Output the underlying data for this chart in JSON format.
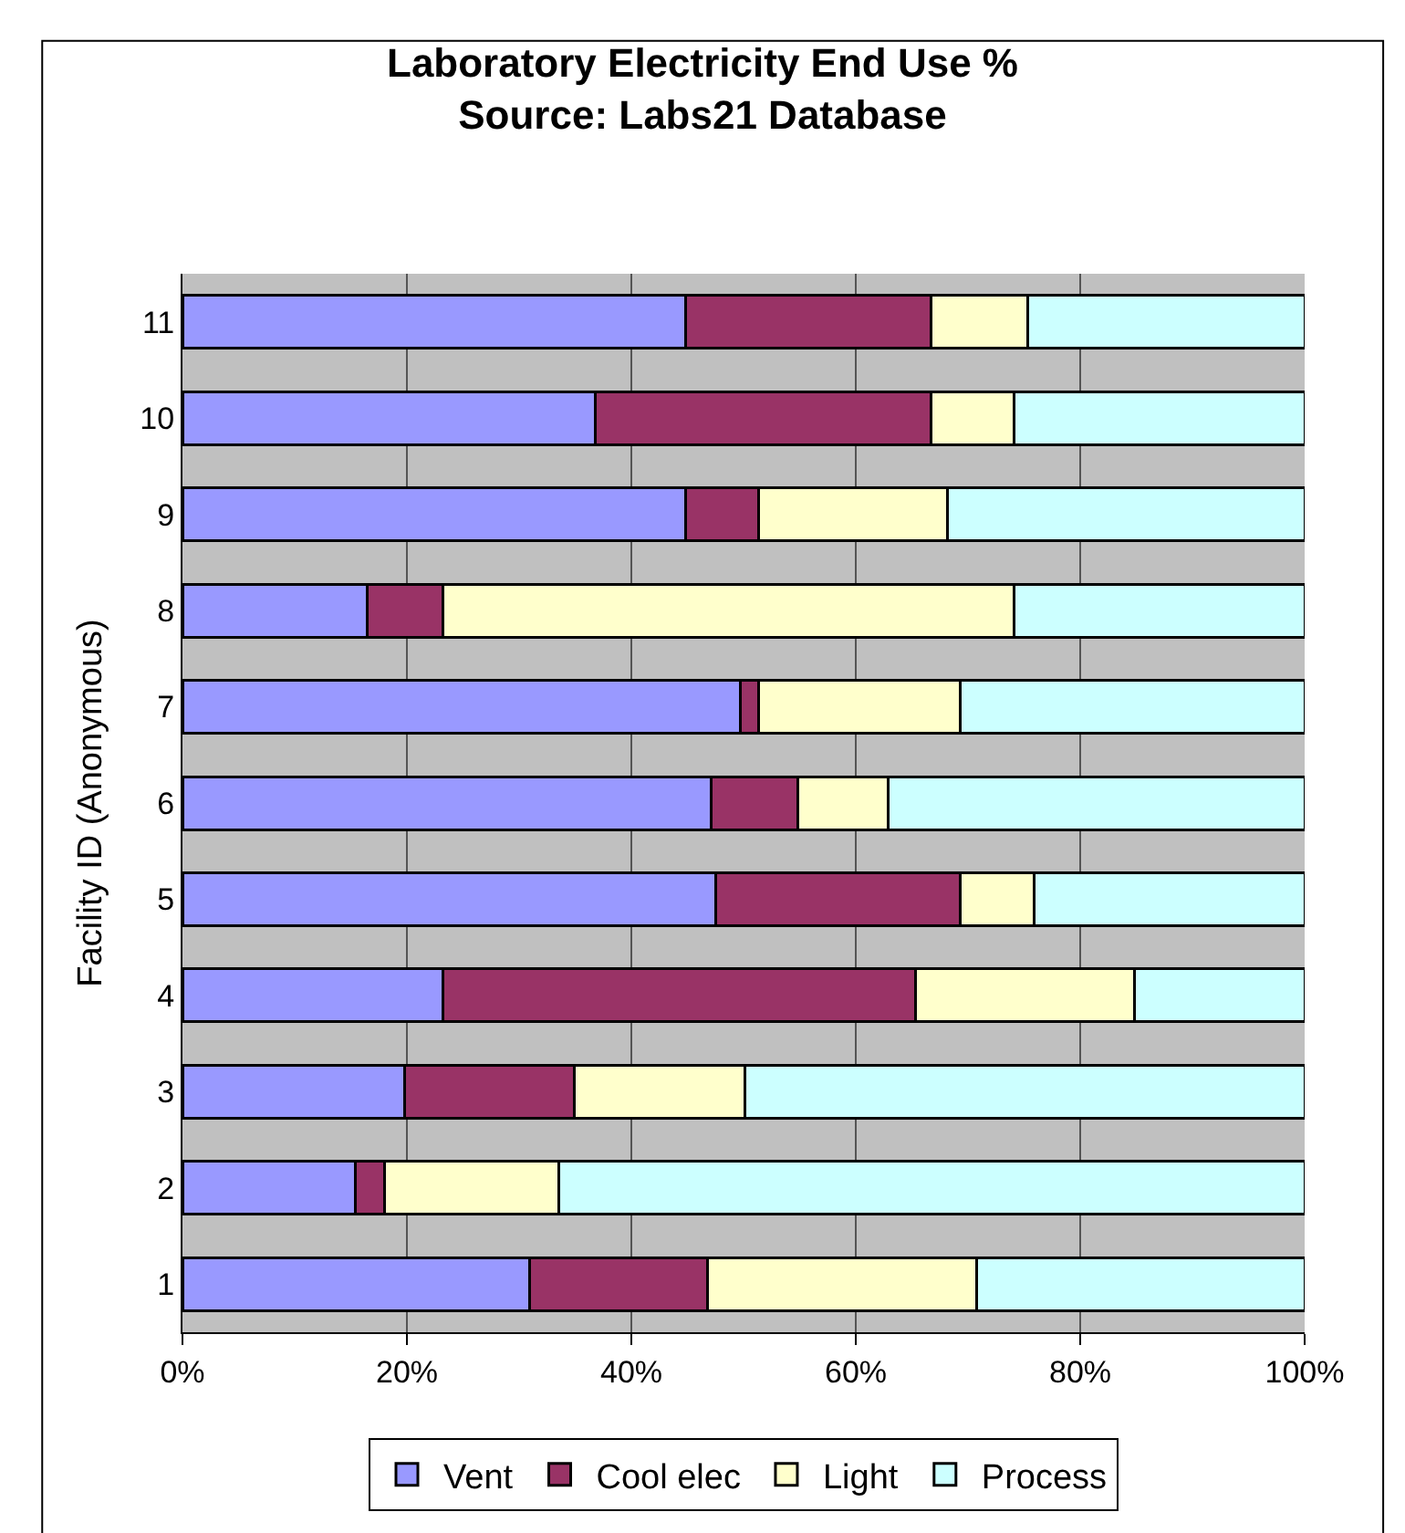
{
  "chart_data": {
    "type": "bar",
    "orientation": "horizontal",
    "stacked": true,
    "title": "Laboratory Electricity End Use %\nSource: Labs21 Database",
    "ylabel": "Facility ID (Anonymous)",
    "categories": [
      "11",
      "10",
      "9",
      "8",
      "7",
      "6",
      "5",
      "4",
      "3",
      "2",
      "1"
    ],
    "series": [
      {
        "name": "Vent",
        "color": "#9999ff",
        "values": [
          44.8,
          36.8,
          44.8,
          16.5,
          49.7,
          47.1,
          47.5,
          23.2,
          19.8,
          15.4,
          30.9
        ]
      },
      {
        "name": "Cool elec",
        "color": "#993366",
        "values": [
          21.9,
          29.9,
          6.5,
          6.7,
          1.6,
          7.7,
          21.8,
          42.1,
          15.1,
          2.6,
          15.9
        ]
      },
      {
        "name": "Light",
        "color": "#ffffcc",
        "values": [
          8.6,
          7.4,
          16.9,
          50.9,
          18.0,
          8.1,
          6.6,
          19.5,
          15.2,
          15.5,
          24.0
        ]
      },
      {
        "name": "Process",
        "color": "#ccffff",
        "values": [
          24.7,
          25.9,
          31.8,
          25.9,
          30.7,
          37.1,
          24.1,
          15.2,
          49.9,
          66.5,
          29.2
        ]
      }
    ],
    "xlim": [
      0,
      100
    ],
    "xticks": [
      {
        "value": 0,
        "label": "0%"
      },
      {
        "value": 20,
        "label": "20%"
      },
      {
        "value": 40,
        "label": "40%"
      },
      {
        "value": 60,
        "label": "60%"
      },
      {
        "value": 80,
        "label": "80%"
      },
      {
        "value": 100,
        "label": "100%"
      }
    ],
    "grid": "x",
    "legend": "bottom"
  }
}
